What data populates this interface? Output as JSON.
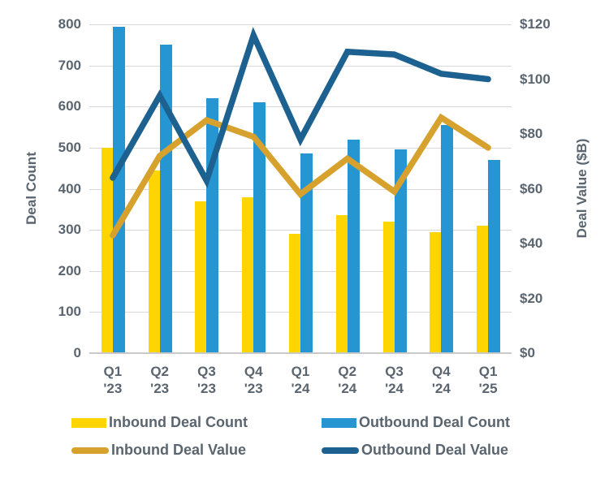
{
  "colors": {
    "inbound_bar": "#FFD500",
    "outbound_bar": "#2696D3",
    "inbound_line": "#D6A12C",
    "outbound_line": "#1C618F",
    "text": "#5A6570",
    "gridline": "#D8D8D8"
  },
  "chart_data": {
    "type": "bar",
    "subtype": "combo-bar-line-dual-axis",
    "categories": [
      "Q1 '23",
      "Q2 '23",
      "Q3 '23",
      "Q4 '23",
      "Q1 '24",
      "Q2 '24",
      "Q3 '24",
      "Q4 '24",
      "Q1 '25"
    ],
    "series": [
      {
        "name": "Inbound Deal Count",
        "role": "bar",
        "axis": "left",
        "color": "#FFD500",
        "values": [
          500,
          445,
          370,
          380,
          290,
          335,
          320,
          295,
          310
        ]
      },
      {
        "name": "Outbound Deal Count",
        "role": "bar",
        "axis": "left",
        "color": "#2696D3",
        "values": [
          795,
          750,
          620,
          610,
          485,
          520,
          495,
          555,
          470
        ]
      },
      {
        "name": "Inbound Deal Value",
        "role": "line",
        "axis": "right",
        "color": "#D6A12C",
        "values": [
          43,
          72,
          85,
          79,
          58,
          71,
          59,
          86,
          75
        ]
      },
      {
        "name": "Outbound Deal Value",
        "role": "line",
        "axis": "right",
        "color": "#1C618F",
        "values": [
          64,
          94,
          63,
          116,
          78,
          110,
          109,
          102,
          100
        ]
      }
    ],
    "left_axis": {
      "title": "Deal Count",
      "min": 0,
      "max": 800,
      "tick_labels": [
        "800",
        "700",
        "600",
        "500",
        "400",
        "300",
        "200",
        "100",
        "0"
      ],
      "tick_values": [
        800,
        700,
        600,
        500,
        400,
        300,
        200,
        100,
        0
      ]
    },
    "right_axis": {
      "title": "Deal Value ($B)",
      "min": 0,
      "max": 120,
      "tick_labels": [
        "$120",
        "$100",
        "$80",
        "$60",
        "$40",
        "$20",
        "$0"
      ],
      "tick_values": [
        120,
        100,
        80,
        60,
        40,
        20,
        0
      ]
    },
    "grid": "horizontal",
    "legend_position": "bottom"
  },
  "legend": {
    "items": [
      {
        "label": "Inbound Deal Count",
        "swatch": "bar",
        "color": "#FFD500"
      },
      {
        "label": "Outbound Deal Count",
        "swatch": "bar",
        "color": "#2696D3"
      },
      {
        "label": "Inbound Deal Value",
        "swatch": "line",
        "color": "#D6A12C"
      },
      {
        "label": "Outbound Deal Value",
        "swatch": "line",
        "color": "#1C618F"
      }
    ]
  }
}
